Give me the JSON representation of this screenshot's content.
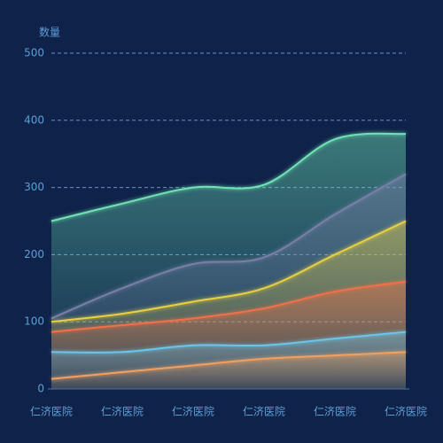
{
  "chart_data": {
    "type": "area",
    "y_axis_label": "数量",
    "categories": [
      "仁济医院",
      "仁济医院",
      "仁济医院",
      "仁济医院",
      "仁济医院",
      "仁济医院"
    ],
    "series": [
      {
        "color": "#6fe3b5",
        "values": [
          250,
          276,
          300,
          304,
          372,
          380
        ]
      },
      {
        "color": "#7a7fa8",
        "values": [
          105,
          150,
          186,
          196,
          260,
          320
        ]
      },
      {
        "color": "#e8d040",
        "values": [
          100,
          112,
          130,
          150,
          200,
          250
        ]
      },
      {
        "color": "#f0704a",
        "values": [
          85,
          95,
          105,
          120,
          145,
          160
        ]
      },
      {
        "color": "#6cc4e8",
        "values": [
          55,
          55,
          65,
          65,
          75,
          85
        ]
      },
      {
        "color": "#f0a060",
        "values": [
          15,
          25,
          35,
          45,
          50,
          55
        ]
      }
    ],
    "smooth": true,
    "ylim": [
      0,
      500
    ],
    "yticks": [
      0,
      100,
      200,
      300,
      400,
      500
    ],
    "grid": true
  }
}
